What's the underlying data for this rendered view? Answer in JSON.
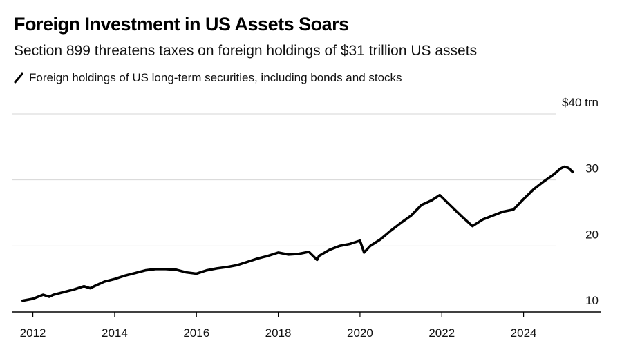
{
  "header": {
    "title": "Foreign Investment in US Assets Soars",
    "subtitle": "Section 899 threatens taxes on foreign holdings of $31 trillion US assets"
  },
  "colors": {
    "line": "#000000",
    "grid": "#d6d6d6",
    "axis": "#000000",
    "text": "#111111"
  },
  "chart_data": {
    "type": "line",
    "title": "Foreign Investment in US Assets Soars",
    "subtitle": "Section 899 threatens taxes on foreign holdings of $31 trillion US assets",
    "xlabel": "",
    "ylabel": "",
    "legend_position": "top-left",
    "grid": true,
    "xlim": [
      2011.5,
      2025.9
    ],
    "ylim": [
      10,
      40
    ],
    "y_ticks": [
      {
        "value": 40,
        "label": "$40 trn"
      },
      {
        "value": 30,
        "label": "30"
      },
      {
        "value": 20,
        "label": "20"
      },
      {
        "value": 10,
        "label": "10"
      }
    ],
    "x_ticks": [
      {
        "value": 2012,
        "label": "2012"
      },
      {
        "value": 2014,
        "label": "2014"
      },
      {
        "value": 2016,
        "label": "2016"
      },
      {
        "value": 2018,
        "label": "2018"
      },
      {
        "value": 2020,
        "label": "2020"
      },
      {
        "value": 2022,
        "label": "2022"
      },
      {
        "value": 2024,
        "label": "2024"
      }
    ],
    "series": [
      {
        "name": "Foreign holdings of US long-term securities, including bonds and stocks",
        "x": [
          2011.75,
          2012.0,
          2012.25,
          2012.4,
          2012.5,
          2012.75,
          2013.0,
          2013.25,
          2013.4,
          2013.5,
          2013.75,
          2014.0,
          2014.25,
          2014.5,
          2014.75,
          2015.0,
          2015.25,
          2015.5,
          2015.75,
          2016.0,
          2016.25,
          2016.5,
          2016.75,
          2017.0,
          2017.25,
          2017.5,
          2017.75,
          2018.0,
          2018.25,
          2018.5,
          2018.75,
          2018.95,
          2019.0,
          2019.25,
          2019.5,
          2019.75,
          2020.0,
          2020.1,
          2020.25,
          2020.5,
          2020.75,
          2021.0,
          2021.25,
          2021.5,
          2021.75,
          2021.95,
          2022.25,
          2022.5,
          2022.75,
          2023.0,
          2023.25,
          2023.5,
          2023.75,
          2024.0,
          2024.25,
          2024.5,
          2024.75,
          2024.9,
          2025.0,
          2025.1,
          2025.2
        ],
        "y": [
          11.7,
          12.0,
          12.6,
          12.3,
          12.6,
          13.0,
          13.4,
          13.9,
          13.6,
          13.9,
          14.6,
          15.0,
          15.5,
          15.9,
          16.3,
          16.5,
          16.5,
          16.4,
          16.0,
          15.8,
          16.3,
          16.6,
          16.8,
          17.1,
          17.6,
          18.1,
          18.5,
          19.0,
          18.7,
          18.8,
          19.1,
          17.9,
          18.5,
          19.4,
          20.0,
          20.3,
          20.8,
          19.0,
          20.0,
          21.0,
          22.3,
          23.5,
          24.6,
          26.2,
          26.9,
          27.7,
          25.9,
          24.4,
          23.0,
          24.0,
          24.6,
          25.2,
          25.5,
          27.1,
          28.6,
          29.8,
          30.9,
          31.7,
          32.0,
          31.8,
          31.2
        ]
      }
    ]
  }
}
